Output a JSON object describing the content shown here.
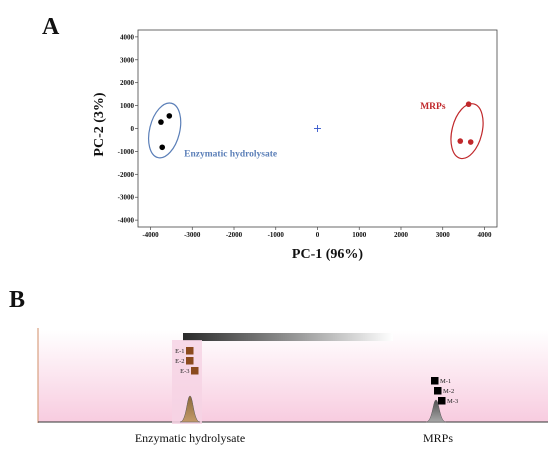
{
  "panel_a_label": "A",
  "panel_b_label": "B",
  "chart_data": [
    {
      "type": "scatter",
      "xlabel": "PC-1 (96%)",
      "ylabel": "PC-2 (3%)",
      "xlim": [
        -4300,
        4300
      ],
      "ylim": [
        -4300,
        4300
      ],
      "xticks": [
        -4000,
        -3000,
        -2000,
        -1000,
        0,
        1000,
        2000,
        3000,
        4000
      ],
      "yticks": [
        4000,
        3000,
        2000,
        1000,
        0,
        -1000,
        -2000,
        -3000,
        -4000
      ],
      "grid": false,
      "series": [
        {
          "name": "Enzymatic hydrolysate",
          "color": "#000000",
          "ellipse_color": "#5b7fb8",
          "points": [
            [
              -3550,
              550
            ],
            [
              -3750,
              280
            ],
            [
              -3720,
              -820
            ]
          ]
        },
        {
          "name": "MRPs",
          "color": "#c0282b",
          "ellipse_color": "#c0282b",
          "points": [
            [
              3620,
              1060
            ],
            [
              3420,
              -550
            ],
            [
              3670,
              -590
            ]
          ]
        }
      ],
      "center_marker": [
        0,
        0
      ]
    },
    {
      "type": "area",
      "peaks": [
        {
          "name": "Enzymatic hydrolysate",
          "color": "#a07a50",
          "labels": [
            "E-1",
            "E-2",
            "E-3"
          ],
          "label_color": "#8b4a1e"
        },
        {
          "name": "MRPs",
          "color": "#808080",
          "labels": [
            "M-1",
            "M-2",
            "M-3"
          ],
          "label_color": "#000000"
        }
      ]
    }
  ]
}
